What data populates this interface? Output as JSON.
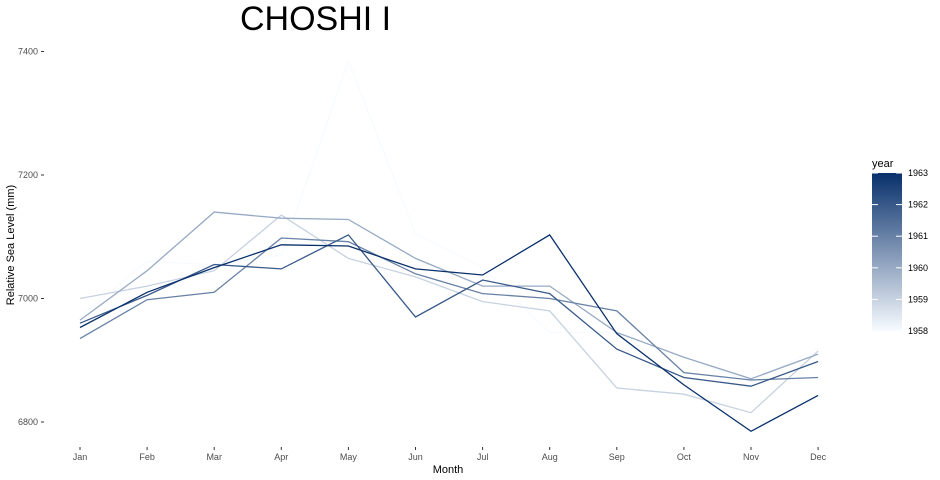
{
  "chart_data": {
    "type": "line",
    "title": "CHOSHI I",
    "xlabel": "Month",
    "ylabel": "Relative Sea Level (mm)",
    "categories": [
      "Jan",
      "Feb",
      "Mar",
      "Apr",
      "May",
      "Jun",
      "Jul",
      "Aug",
      "Sep",
      "Oct",
      "Nov",
      "Dec"
    ],
    "ylim": [
      6745,
      7430
    ],
    "yticks": [
      6800,
      7000,
      7200,
      7400
    ],
    "grid": false,
    "legend": {
      "title": "year",
      "position": "right",
      "type": "colorbar",
      "range": [
        1958,
        1963
      ],
      "ticks": [
        1958,
        1959,
        1960,
        1961,
        1962,
        1963
      ],
      "color_low": "#f7fbff",
      "color_high": "#08306b"
    },
    "series": [
      {
        "year": 1958,
        "values": [
          6970,
          7060,
          7055,
          7070,
          7385,
          7105,
          7050,
          6945,
          6945,
          6905,
          6865,
          6920
        ]
      },
      {
        "year": 1959,
        "values": [
          7000,
          7020,
          7045,
          7135,
          7065,
          7035,
          6995,
          6980,
          6855,
          6845,
          6815,
          6915
        ]
      },
      {
        "year": 1960,
        "values": [
          6965,
          7045,
          7140,
          7130,
          7128,
          7065,
          7020,
          7020,
          6945,
          6905,
          6870,
          6910
        ]
      },
      {
        "year": 1961,
        "values": [
          6935,
          6998,
          7010,
          7098,
          7092,
          7040,
          7008,
          7000,
          6980,
          6880,
          6868,
          6872
        ]
      },
      {
        "year": 1962,
        "values": [
          6960,
          7005,
          7055,
          7048,
          7103,
          6970,
          7030,
          7008,
          6918,
          6872,
          6858,
          6898
        ]
      },
      {
        "year": 1963,
        "values": [
          6953,
          7010,
          7050,
          7087,
          7085,
          7048,
          7038,
          7103,
          6943,
          6860,
          6785,
          6843
        ]
      }
    ]
  }
}
